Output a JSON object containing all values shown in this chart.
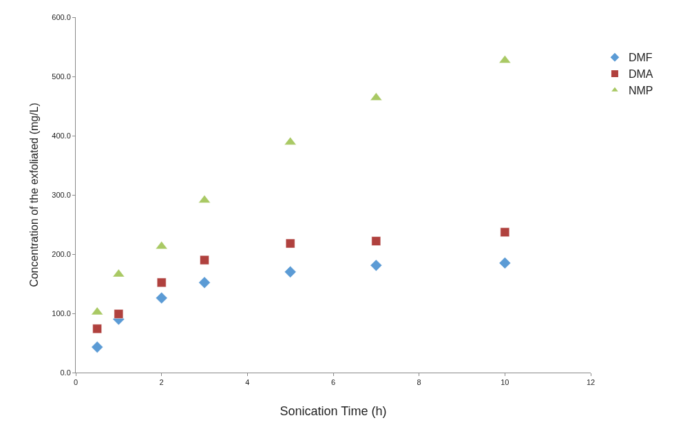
{
  "chart_data": {
    "type": "scatter",
    "xlabel": "Sonication Time (h)",
    "ylabel": "Concentration of the exfoliated (mg/L)",
    "x": [
      0.5,
      1,
      2,
      3,
      5,
      7,
      10
    ],
    "series": [
      {
        "name": "DMF",
        "color": "#5b9bd5",
        "marker": "diamond",
        "values": [
          43,
          90,
          126,
          152,
          170,
          181,
          185
        ]
      },
      {
        "name": "DMA",
        "color": "#b0413e",
        "marker": "square",
        "values": [
          74,
          99,
          152,
          190,
          218,
          222,
          237
        ]
      },
      {
        "name": "NMP",
        "color": "#a9c964",
        "marker": "triangle",
        "values": [
          102,
          166,
          213,
          291,
          389,
          464,
          527
        ]
      }
    ],
    "xlim": [
      0,
      12
    ],
    "xticks": [
      0,
      2,
      4,
      6,
      8,
      10,
      12
    ],
    "ylim": [
      0,
      600
    ],
    "yticks": [
      {
        "value": 0,
        "label": "0.0"
      },
      {
        "value": 100,
        "label": "100.0"
      },
      {
        "value": 200,
        "label": "200.0"
      },
      {
        "value": 300,
        "label": "300.0"
      },
      {
        "value": 400,
        "label": "400.0"
      },
      {
        "value": 500,
        "label": "500.0"
      },
      {
        "value": 600,
        "label": "600.0"
      }
    ],
    "legend": "right"
  }
}
